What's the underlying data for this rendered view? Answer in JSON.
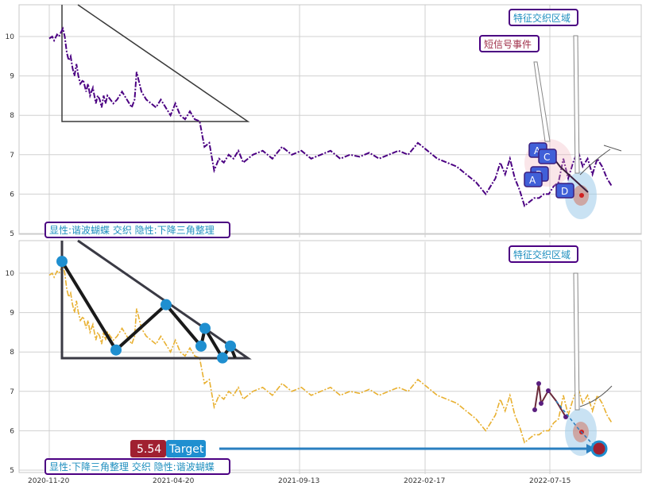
{
  "chart_data": [
    {
      "type": "line",
      "panel": "top",
      "ylim": [
        4.9,
        10.8
      ],
      "yticks": [
        5,
        6,
        7,
        8,
        9,
        10
      ],
      "grid": true,
      "colors": {
        "price": "#4b0082",
        "triangle": "#3a3a3a",
        "label_border": "#4b0082",
        "label_text": "#1f8fbf",
        "event_text": "#a0304a"
      },
      "series": [
        {
          "values_x": [
            0,
            3,
            5,
            8,
            10,
            12,
            14,
            16,
            18,
            20,
            22,
            24,
            26,
            28,
            30,
            32,
            35,
            38,
            40,
            42,
            45,
            48,
            50,
            52,
            54,
            56,
            58,
            60,
            63,
            66,
            70,
            75,
            80,
            85,
            88,
            90,
            95,
            100,
            105,
            110,
            115,
            120,
            125,
            130,
            135,
            140,
            145,
            150,
            155,
            160,
            165,
            170,
            175,
            180,
            185,
            190,
            195,
            200,
            210,
            220,
            230,
            240,
            250,
            260,
            270,
            280,
            290,
            300,
            310,
            320,
            330,
            340,
            350,
            360,
            370,
            380,
            390,
            400,
            410,
            420,
            430,
            440,
            450,
            460,
            465,
            470,
            475,
            480,
            485,
            490,
            495,
            500,
            505,
            510,
            515,
            520,
            525,
            530,
            535,
            540,
            545,
            550,
            555,
            560,
            565,
            570,
            575,
            580
          ],
          "values": [
            9.95,
            10.0,
            9.9,
            10.05,
            10.0,
            10.1,
            10.2,
            10.0,
            9.6,
            9.4,
            9.5,
            9.2,
            9.0,
            9.3,
            9.0,
            8.8,
            8.9,
            8.6,
            8.8,
            8.5,
            8.7,
            8.3,
            8.5,
            8.4,
            8.2,
            8.5,
            8.3,
            8.5,
            8.4,
            8.3,
            8.4,
            8.6,
            8.4,
            8.2,
            8.4,
            9.1,
            8.6,
            8.4,
            8.3,
            8.2,
            8.4,
            8.2,
            8.0,
            8.3,
            8.0,
            7.9,
            8.1,
            7.9,
            7.85,
            7.2,
            7.3,
            6.6,
            6.9,
            6.8,
            7.0,
            6.9,
            7.1,
            6.8,
            7.0,
            7.1,
            6.9,
            7.2,
            7.0,
            7.1,
            6.9,
            7.0,
            7.1,
            6.9,
            7.0,
            6.95,
            7.05,
            6.9,
            7.0,
            7.1,
            7.0,
            7.3,
            7.1,
            6.9,
            6.8,
            6.7,
            6.5,
            6.3,
            6.0,
            6.4,
            6.8,
            6.5,
            6.9,
            6.4,
            6.1,
            5.7,
            5.8,
            5.9,
            5.9,
            6.0,
            6.0,
            6.2,
            6.3,
            6.9,
            6.4,
            6.8,
            7.1,
            6.7,
            6.9,
            6.5,
            6.9,
            6.7,
            6.4,
            6.2
          ]
        }
      ],
      "annotations": {
        "label_bottom": "显性:谐波蝴蝶 交织 隐性:下降三角整理",
        "label_zone": "特征交织区域",
        "label_event": "短信号事件",
        "points": [
          "A",
          "C",
          "B",
          "A",
          "D"
        ]
      }
    },
    {
      "type": "line",
      "panel": "bottom",
      "ylim": [
        4.9,
        10.8
      ],
      "yticks": [
        5,
        6,
        7,
        8,
        9,
        10
      ],
      "xticks": [
        "2020-11-20",
        "2021-04-20",
        "2021-09-13",
        "2022-02-17",
        "2022-07-15"
      ],
      "grid": true,
      "colors": {
        "price": "#e8b030",
        "zigzag": "#1a1a1a",
        "pivot": "#1f8fd0",
        "target_arrow": "#2a7fc0",
        "badge_value_bg": "#a02030",
        "badge_text_bg": "#1f8fd0"
      },
      "pivots": [
        {
          "x": 5,
          "y": 10.3
        },
        {
          "x": 28,
          "y": 8.05
        },
        {
          "x": 48,
          "y": 9.2
        },
        {
          "x": 63,
          "y": 8.15
        },
        {
          "x": 65,
          "y": 8.6
        },
        {
          "x": 71,
          "y": 7.85
        },
        {
          "x": 74,
          "y": 8.15
        }
      ],
      "target": {
        "value": "5.54",
        "label": "Target"
      },
      "annotations": {
        "label_bottom": "显性:下降三角整理 交织 隐性:谐波蝴蝶",
        "label_zone": "特征交织区域"
      }
    }
  ]
}
